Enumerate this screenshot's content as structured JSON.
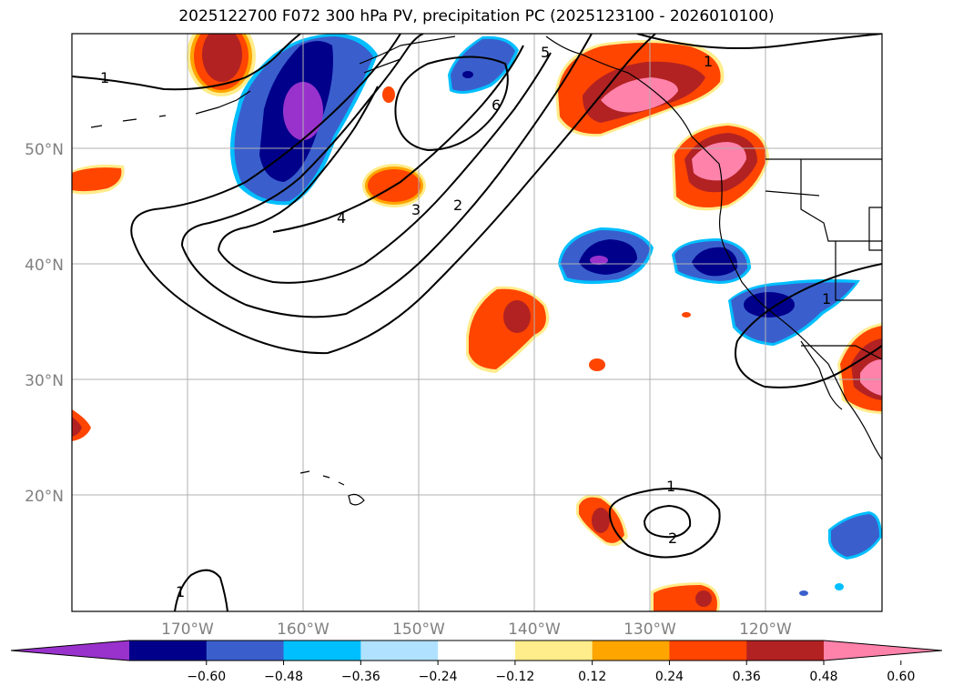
{
  "title": "2025122700 F072 300 hPa PV, precipitation PC (2025123100 - 2026010100)",
  "lat_labels": [
    "50°N",
    "40°N",
    "30°N",
    "20°N"
  ],
  "lon_labels": [
    "170°W",
    "160°W",
    "150°W",
    "140°W",
    "130°W",
    "120°W"
  ],
  "colorbar": {
    "ticks": [
      "−0.60",
      "−0.48",
      "−0.36",
      "−0.24",
      "−0.12",
      "0.12",
      "0.24",
      "0.36",
      "0.48",
      "0.60"
    ],
    "colors": [
      "#9932cc",
      "#00008b",
      "#3a5fcd",
      "#00bfff",
      "#b0e2ff",
      "#ffffff",
      "#ffec8b",
      "#ffa500",
      "#ff4500",
      "#b22222",
      "#ff82ab"
    ]
  },
  "contour_labels": [
    "1",
    "1",
    "1",
    "1",
    "2",
    "2",
    "3",
    "4",
    "5",
    "6",
    "1"
  ],
  "colors": {
    "neg_strong": "#9932cc",
    "neg_dark": "#00008b",
    "neg_mid": "#3a5fcd",
    "neg_light": "#00bfff",
    "pos_light": "#ffec8b",
    "pos_orange": "#ffa500",
    "pos_redorange": "#ff4500",
    "pos_red": "#b22222",
    "pos_pink": "#ff82ab"
  }
}
